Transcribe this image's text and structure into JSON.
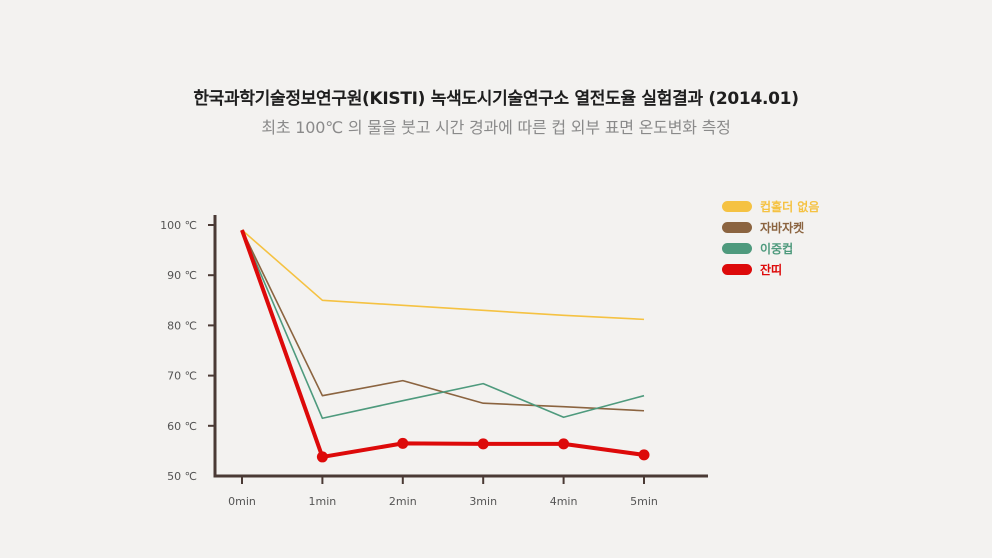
{
  "header": {
    "title": "한국과학기술정보연구원(KISTI) 녹색도시기술연구소 열전도율 실험결과 (2014.01)",
    "subtitle": "최초 100℃ 의 물을 붓고 시간 경과에 따른 컵 외부 표면 온도변화 측정"
  },
  "chart_data": {
    "type": "line",
    "title": "한국과학기술정보연구원(KISTI) 녹색도시기술연구소 열전도율 실험결과 (2014.01)",
    "subtitle": "최초 100℃ 의 물을 붓고 시간 경과에 따른 컵 외부 표면 온도변화 측정",
    "categories": [
      "0min",
      "1min",
      "2min",
      "3min",
      "4min",
      "5min"
    ],
    "y_ticks": [
      "100 ℃",
      "90 ℃",
      "80 ℃",
      "70 ℃",
      "60 ℃",
      "50 ℃"
    ],
    "ylim": [
      50,
      100
    ],
    "grid": false,
    "legend_position": "top-right",
    "series": [
      {
        "name": "컵홀더 없음",
        "color": "#f5c242",
        "values": [
          99,
          85,
          84,
          83,
          82,
          81.2
        ],
        "markers": false
      },
      {
        "name": "자바자켓",
        "color": "#8b6440",
        "values": [
          99,
          66,
          69,
          64.5,
          63.8,
          63
        ],
        "markers": false
      },
      {
        "name": "이중컵",
        "color": "#4e9a7d",
        "values": [
          99,
          61.5,
          65,
          68.4,
          61.7,
          66
        ],
        "markers": false
      },
      {
        "name": "잔띠",
        "color": "#dd0a0a",
        "values": [
          99,
          53.8,
          56.5,
          56.4,
          56.4,
          54.2
        ],
        "markers": true
      }
    ]
  }
}
